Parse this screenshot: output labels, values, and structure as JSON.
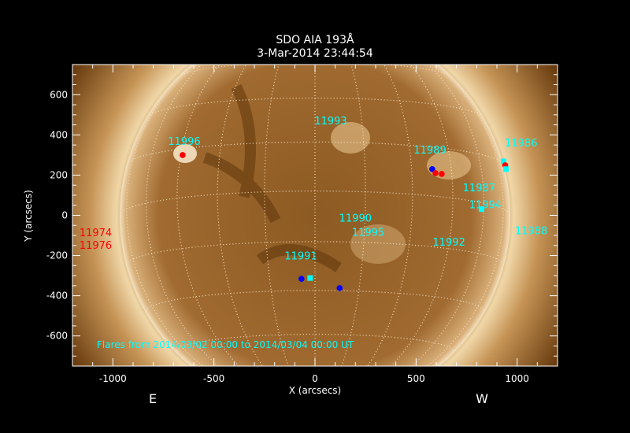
{
  "chart_data": {
    "type": "scatter",
    "title": "SDO AIA 193Å",
    "subtitle": "3-Mar-2014 23:44:54",
    "xlabel": "X (arcsecs)",
    "ylabel": "Y (arcsecs)",
    "xlim": [
      -1200,
      1200
    ],
    "ylim": [
      -750,
      750
    ],
    "xticks": [
      -1000,
      -500,
      0,
      500,
      1000
    ],
    "yticks": [
      -600,
      -400,
      -200,
      0,
      200,
      400,
      600
    ],
    "east_label": "E",
    "west_label": "W",
    "annotation": "Flares from 2014/03/02 00:00 to 2014/03/04 00:00 UT",
    "grid": "heliographic",
    "colors": {
      "region_label": "#00ffff",
      "old_region_label": "#ff0000",
      "blue": "#0000ff",
      "red": "#ff0000",
      "cyan": "#00ffff",
      "axes": "#ffffff"
    },
    "region_labels": [
      {
        "text": "11996",
        "x": -647,
        "y": 370,
        "color": "cyan"
      },
      {
        "text": "11974",
        "x": -1085,
        "y": -85,
        "color": "red"
      },
      {
        "text": "11976",
        "x": -1085,
        "y": -100,
        "color": "red"
      },
      {
        "text": "11993",
        "x": 78,
        "y": 471,
        "color": "cyan"
      },
      {
        "text": "11989",
        "x": 569,
        "y": 327,
        "color": "cyan"
      },
      {
        "text": "11986",
        "x": 1020,
        "y": 362,
        "color": "cyan"
      },
      {
        "text": "11987",
        "x": 812,
        "y": 140,
        "color": "cyan"
      },
      {
        "text": "11994",
        "x": 843,
        "y": 55,
        "color": "cyan"
      },
      {
        "text": "11990",
        "x": 200,
        "y": -12,
        "color": "cyan"
      },
      {
        "text": "11995",
        "x": 263,
        "y": -82,
        "color": "cyan"
      },
      {
        "text": "11992",
        "x": 663,
        "y": -132,
        "color": "cyan"
      },
      {
        "text": "11988",
        "x": 1070,
        "y": -74,
        "color": "cyan"
      },
      {
        "text": "11991",
        "x": -70,
        "y": -199,
        "color": "cyan"
      }
    ],
    "flare_points": [
      {
        "x": -655,
        "y": 300,
        "color": "red"
      },
      {
        "x": 580,
        "y": 230,
        "color": "blue"
      },
      {
        "x": 596,
        "y": 210,
        "color": "red"
      },
      {
        "x": 627,
        "y": 206,
        "color": "red"
      },
      {
        "x": 933,
        "y": 269,
        "color": "cyan"
      },
      {
        "x": 941,
        "y": 249,
        "color": "red"
      },
      {
        "x": 945,
        "y": 230,
        "color": "cyan"
      },
      {
        "x": 824,
        "y": 31,
        "color": "cyan"
      },
      {
        "x": -24,
        "y": -312,
        "color": "cyan"
      },
      {
        "x": -67,
        "y": -316,
        "color": "blue"
      },
      {
        "x": 122,
        "y": -362,
        "color": "blue"
      }
    ]
  }
}
